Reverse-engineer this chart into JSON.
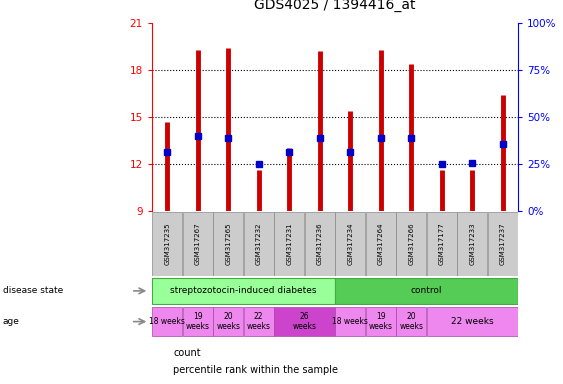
{
  "title": "GDS4025 / 1394416_at",
  "samples": [
    "GSM317235",
    "GSM317267",
    "GSM317265",
    "GSM317232",
    "GSM317231",
    "GSM317236",
    "GSM317234",
    "GSM317264",
    "GSM317266",
    "GSM317177",
    "GSM317233",
    "GSM317237"
  ],
  "counts": [
    14.7,
    19.3,
    19.4,
    11.6,
    13.0,
    19.2,
    15.4,
    19.3,
    18.4,
    11.6,
    11.6,
    16.4
  ],
  "percentiles": [
    12.8,
    13.8,
    13.7,
    12.0,
    12.8,
    13.7,
    12.8,
    13.7,
    13.7,
    12.0,
    12.1,
    13.3
  ],
  "ymin": 9,
  "ymax": 21,
  "yticks": [
    9,
    12,
    15,
    18,
    21
  ],
  "right_yticks": [
    0,
    25,
    50,
    75,
    100
  ],
  "bar_color": "#cc0000",
  "dot_color": "#0000cc",
  "disease_color_1": "#99ff99",
  "disease_color_2": "#55cc55",
  "age_color": "#ee88ee",
  "age_color_26": "#cc44cc",
  "tick_bg": "#cccccc",
  "age_groups": [
    {
      "label": "18 weeks",
      "start": 0,
      "end": 0,
      "color": "#ee88ee"
    },
    {
      "label": "19\nweeks",
      "start": 1,
      "end": 1,
      "color": "#ee88ee"
    },
    {
      "label": "20\nweeks",
      "start": 2,
      "end": 2,
      "color": "#ee88ee"
    },
    {
      "label": "22\nweeks",
      "start": 3,
      "end": 3,
      "color": "#ee88ee"
    },
    {
      "label": "26\nweeks",
      "start": 4,
      "end": 5,
      "color": "#cc44cc"
    },
    {
      "label": "18 weeks",
      "start": 6,
      "end": 6,
      "color": "#ee88ee"
    },
    {
      "label": "19\nweeks",
      "start": 7,
      "end": 7,
      "color": "#ee88ee"
    },
    {
      "label": "20\nweeks",
      "start": 8,
      "end": 8,
      "color": "#ee88ee"
    },
    {
      "label": "22 weeks",
      "start": 9,
      "end": 11,
      "color": "#ee88ee"
    }
  ]
}
